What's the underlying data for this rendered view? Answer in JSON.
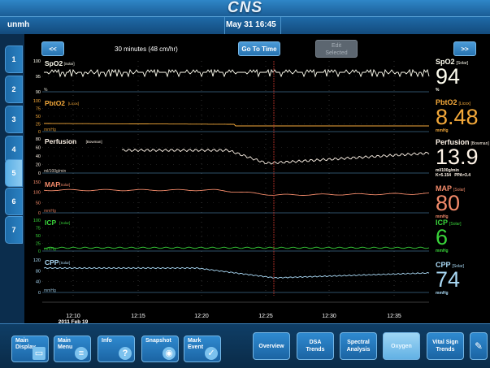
{
  "header": {
    "app_title": "CNS",
    "bed": "unmh",
    "datetime": "May 31  16:45"
  },
  "left_tabs": [
    "1",
    "2",
    "3",
    "4",
    "5",
    "6",
    "7"
  ],
  "active_tab": "5",
  "controls": {
    "prev": "<<",
    "next": ">>",
    "timespan": "30 minutes  (48 cm/hr)",
    "go_to_time": "Go To Time",
    "edit_selected_line1": "Edit",
    "edit_selected_line2": "Selected"
  },
  "colors": {
    "spo2": "#fffef0",
    "pbto2": "#f4a93a",
    "perfusion": "#fff4e8",
    "map": "#f28a6a",
    "icp": "#39d43a",
    "cpp": "#a9d8f4",
    "accent": "#2f86c7",
    "cursor": "#c8362e"
  },
  "channels": [
    {
      "id": "spo2",
      "name": "SpO2",
      "source": "[Solar]",
      "unit": "%",
      "value": "94",
      "yticks": [
        "100",
        "95",
        "90"
      ],
      "bottom_label": "%"
    },
    {
      "id": "pbto2",
      "name": "PbtO2",
      "source": "[Licox]",
      "unit": "mmHg",
      "value": "8.48",
      "yticks": [
        "100",
        "75",
        "50",
        "25",
        "0"
      ],
      "bottom_label": "mmHg"
    },
    {
      "id": "perfusion",
      "name": "Perfusion",
      "source": "[Bowman]",
      "unit": "ml/100g/min",
      "value": "13.9",
      "yticks": [
        "80",
        "60",
        "40",
        "20",
        "0"
      ],
      "bottom_label": "ml/100g/min",
      "extra": "K=5.154   PPA=3.4"
    },
    {
      "id": "map",
      "name": "MAP",
      "source": "[Solar]",
      "unit": "mmHg",
      "value": "80",
      "yticks": [
        "150",
        "100",
        "50",
        "0"
      ],
      "bottom_label": "mmHg"
    },
    {
      "id": "icp",
      "name": "ICP",
      "source": "[Solar]",
      "unit": "mmHg",
      "value": "6",
      "yticks": [
        "100",
        "75",
        "50",
        "25",
        "0"
      ],
      "bottom_label": "mmHg"
    },
    {
      "id": "cpp",
      "name": "CPP",
      "source": "[Solar]",
      "unit": "mmHg",
      "value": "74",
      "yticks": [
        "120",
        "80",
        "40",
        "0"
      ],
      "bottom_label": "mmHg"
    }
  ],
  "time_axis": {
    "ticks": [
      "12:10",
      "12:15",
      "12:20",
      "12:25",
      "12:30",
      "12:35"
    ],
    "date": "2011 Feb 19"
  },
  "toolbar": {
    "main_display": "Main\nDisplay",
    "main_menu": "Main\nMenu",
    "info": "Info",
    "snapshot": "Snapshot",
    "mark_event": "Mark\nEvent",
    "overview": "Overview",
    "dsa_trends": "DSA\nTrends",
    "spectral_analysis": "Spectral\nAnalysis",
    "oxygen": "Oxygen",
    "vital_sign_trends": "Vital Sign\nTrends"
  },
  "icons": {
    "main_display": "monitor-icon",
    "main_menu": "menu-list-icon",
    "info": "question-icon",
    "snapshot": "camera-icon",
    "mark_event": "checkmark-icon",
    "edit": "pencil-icon"
  }
}
